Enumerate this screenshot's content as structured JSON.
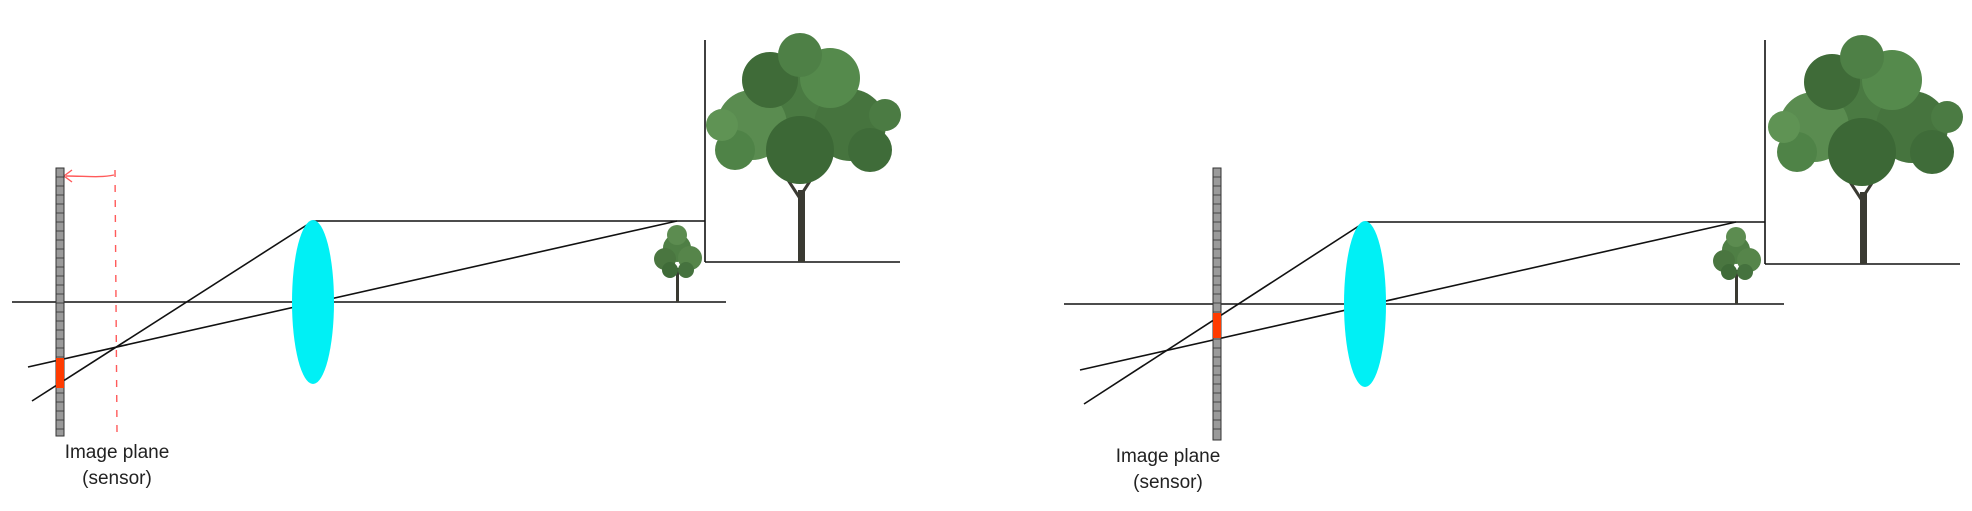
{
  "panels": [
    {
      "id": "left",
      "caption_line1": "Image plane",
      "caption_line2": "(sensor)",
      "shows_dashed_plane": true,
      "shows_arrow": true
    },
    {
      "id": "right",
      "caption_line1": "Image plane",
      "caption_line2": "(sensor)",
      "shows_dashed_plane": false,
      "shows_arrow": false
    }
  ],
  "colors": {
    "lens": "#00f0f5",
    "sensor_fill": "#9a9a9a",
    "sensor_highlight": "#ff3b00",
    "dashed_plane": "#ff5a5a",
    "rays": "#111111",
    "tree_foliage": "#3d6b3a",
    "tree_trunk": "#3a3a32"
  }
}
